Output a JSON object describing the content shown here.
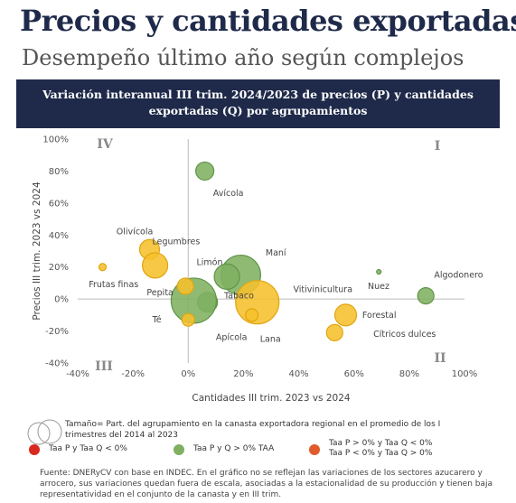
{
  "header": {
    "title": "Precios y cantidades exportadas",
    "subtitle": "Desempeño último año según complejos",
    "chart_title_line1": "Variación interanual III trim.  2024/2023 de precios (P) y cantidades",
    "chart_title_line2": "exportadas (Q) por agrupamientos"
  },
  "chart_data": {
    "type": "scatter",
    "xlabel": "Cantidades III trim. 2023 vs 2024",
    "ylabel": "Precios III trim.  2023 vs 2024",
    "xlim": [
      -40,
      100
    ],
    "ylim": [
      -40,
      100
    ],
    "x_ticks": [
      "-40%",
      "-20%",
      "0%",
      "20%",
      "40%",
      "60%",
      "80%",
      "100%"
    ],
    "y_ticks": [
      "-40%",
      "-20%",
      "0%",
      "20%",
      "40%",
      "60%",
      "80%",
      "100%"
    ],
    "quadrants": [
      "I",
      "II",
      "III",
      "IV"
    ],
    "colors": {
      "green": "#7fb061",
      "yellow": "#f6c02c",
      "red": "#d9281e",
      "orange": "#e05a2c"
    },
    "points": [
      {
        "name": "Avícola",
        "x": 6,
        "y": 80,
        "size": 10,
        "color": "green"
      },
      {
        "name": "Maní",
        "x": 19,
        "y": 15,
        "size": 22,
        "color": "green"
      },
      {
        "name": "Algodonero",
        "x": 86,
        "y": 2,
        "size": 9,
        "color": "green"
      },
      {
        "name": "Nuez",
        "x": 69,
        "y": 17,
        "size": 2.5,
        "color": "green"
      },
      {
        "name": "Tabaco",
        "x": 14,
        "y": 14,
        "size": 14,
        "color": "green"
      },
      {
        "name": "Apícola",
        "x": 7,
        "y": -2,
        "size": 11,
        "color": "green"
      },
      {
        "name": "Té",
        "x": 2,
        "y": -1,
        "size": 25,
        "color": "green"
      },
      {
        "name": "Olivícola",
        "x": -14,
        "y": 31,
        "size": 11,
        "color": "yellow"
      },
      {
        "name": "Legumbres",
        "x": -12,
        "y": 21,
        "size": 14,
        "color": "yellow"
      },
      {
        "name": "Frutas finas",
        "x": -31,
        "y": 20,
        "size": 4,
        "color": "yellow"
      },
      {
        "name": "Pepita",
        "x": -1,
        "y": 8,
        "size": 9,
        "color": "yellow"
      },
      {
        "name": "Limón",
        "x": 0,
        "y": -13,
        "size": 7,
        "color": "yellow"
      },
      {
        "name": "Vitivinicultura",
        "x": 25,
        "y": -2,
        "size": 24,
        "color": "yellow"
      },
      {
        "name": "Lana",
        "x": 23,
        "y": -10,
        "size": 7,
        "color": "yellow"
      },
      {
        "name": "Forestal",
        "x": 57,
        "y": -10,
        "size": 12,
        "color": "yellow"
      },
      {
        "name": "Cítricos dulces",
        "x": 53,
        "y": -21,
        "size": 9,
        "color": "yellow"
      }
    ],
    "labels": [
      {
        "text": "Avícola",
        "x": 9,
        "y": 66
      },
      {
        "text": "Maní",
        "x": 28,
        "y": 29
      },
      {
        "text": "Algodonero",
        "x": 89,
        "y": 15
      },
      {
        "text": "Nuez",
        "x": 65,
        "y": 8
      },
      {
        "text": "Tabaco",
        "x": 13,
        "y": 2
      },
      {
        "text": "Apícola",
        "x": 10,
        "y": -24
      },
      {
        "text": "Té",
        "x": -13,
        "y": -13
      },
      {
        "text": "Olivícola",
        "x": -26,
        "y": 42
      },
      {
        "text": "Legumbres",
        "x": -13,
        "y": 36
      },
      {
        "text": "Frutas finas",
        "x": -36,
        "y": 9
      },
      {
        "text": "Pepita",
        "x": -15,
        "y": 4
      },
      {
        "text": "Limón",
        "x": 3,
        "y": 23
      },
      {
        "text": "Vitivinicultura",
        "x": 38,
        "y": 6
      },
      {
        "text": "Lana",
        "x": 26,
        "y": -25
      },
      {
        "text": "Forestal",
        "x": 63,
        "y": -10
      },
      {
        "text": "Cítricos dulces",
        "x": 67,
        "y": -22
      }
    ]
  },
  "legend": {
    "size_note": "Tamaño= Part. del agrupamiento en la canasta exportadora regional en el promedio de los I trimestres del 2014 al 2023",
    "red": "Taa P y Taa Q < 0%",
    "green": "Taa P y Q > 0% TAA",
    "orange_line1": "Taa P > 0% y Taa Q < 0%",
    "orange_line2": "Taa P < 0% y Taa Q > 0%"
  },
  "source": "Fuente: DNERyCV con base en INDEC. En el gráfico no se reflejan las variaciones de los sectores azucarero y arrocero, sus variaciones quedan fuera de escala, asociadas a la estacionalidad de su producción y tienen baja representatividad en el conjunto de la canasta y en III trim."
}
